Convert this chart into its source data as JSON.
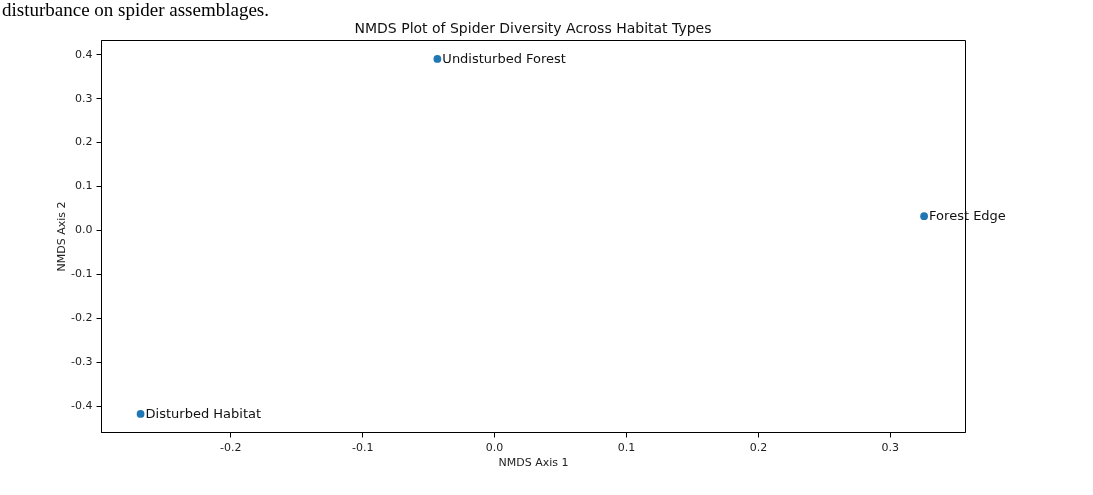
{
  "chart_data": {
    "type": "scatter",
    "title": "NMDS Plot of Spider Diversity Across Habitat Types",
    "xlabel": "NMDS Axis 1",
    "ylabel": "NMDS Axis 2",
    "x": [
      -0.043,
      0.326,
      -0.268
    ],
    "series": [
      {
        "color": "#1f77b4",
        "values": [
          0.389,
          0.031,
          -0.419
        ]
      }
    ],
    "marker": "circle",
    "xlim": [
      -0.298,
      0.357
    ],
    "ylim": [
      -0.46,
      0.432
    ],
    "xticks": [
      -0.2,
      -0.1,
      {
        "value": 0,
        "label": "0.0"
      },
      0.1,
      0.2,
      0.3
    ],
    "yticks": [
      -0.4,
      -0.3,
      -0.2,
      -0.1,
      {
        "value": 0,
        "label": "0.0"
      },
      0.1,
      0.2,
      0.3,
      0.4
    ],
    "annotations": [
      "disturbance on spider assemblages.",
      {
        "text": "Undisturbed Forest",
        "x": -0.043,
        "y": 0.389
      },
      {
        "text": "Forest Edge",
        "x": 0.326,
        "y": 0.031
      },
      {
        "text": "Disturbed Habitat",
        "x": -0.268,
        "y": -0.419
      }
    ]
  }
}
